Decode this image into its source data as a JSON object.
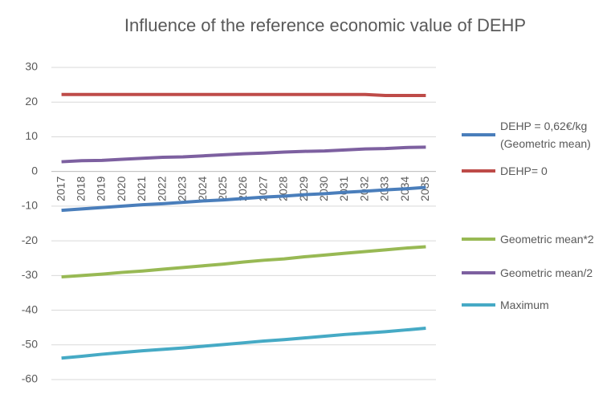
{
  "chart_data": {
    "type": "line",
    "title": "Influence of the reference economic value of DEHP",
    "categories": [
      "2017",
      "2018",
      "2019",
      "2020",
      "2021",
      "2022",
      "2023",
      "2024",
      "2025",
      "2026",
      "2027",
      "2028",
      "2029",
      "2030",
      "2031",
      "2032",
      "2033",
      "2034",
      "2035"
    ],
    "series": [
      {
        "name": "DEHP = 0,62€/kg (Geometric mean)",
        "color": "#4a7ebb",
        "values": [
          -11.2,
          -10.8,
          -10.4,
          -10.0,
          -9.6,
          -9.3,
          -8.9,
          -8.5,
          -8.2,
          -7.8,
          -7.4,
          -7.1,
          -6.7,
          -6.4,
          -6.0,
          -5.7,
          -5.3,
          -5.0,
          -4.6
        ]
      },
      {
        "name": "DEHP= 0",
        "color": "#be4b48",
        "values": [
          22.2,
          22.2,
          22.2,
          22.2,
          22.2,
          22.2,
          22.2,
          22.2,
          22.2,
          22.2,
          22.2,
          22.2,
          22.2,
          22.2,
          22.2,
          22.2,
          21.9,
          21.9,
          21.9
        ]
      },
      {
        "name": "Geometric mean*2",
        "color": "#98b954",
        "values": [
          -30.4,
          -30.0,
          -29.6,
          -29.1,
          -28.7,
          -28.2,
          -27.7,
          -27.2,
          -26.7,
          -26.1,
          -25.6,
          -25.2,
          -24.6,
          -24.1,
          -23.6,
          -23.1,
          -22.6,
          -22.1,
          -21.7
        ]
      },
      {
        "name": "Geometric mean/2",
        "color": "#7d60a0",
        "values": [
          2.8,
          3.1,
          3.2,
          3.5,
          3.8,
          4.1,
          4.2,
          4.5,
          4.8,
          5.1,
          5.3,
          5.6,
          5.8,
          5.9,
          6.2,
          6.5,
          6.6,
          6.9,
          7.0
        ]
      },
      {
        "name": "Maximum",
        "color": "#46aac5",
        "values": [
          -53.8,
          -53.3,
          -52.7,
          -52.2,
          -51.7,
          -51.3,
          -50.9,
          -50.4,
          -49.9,
          -49.4,
          -48.9,
          -48.5,
          -48.0,
          -47.5,
          -47.0,
          -46.6,
          -46.2,
          -45.7,
          -45.2
        ]
      }
    ],
    "ylim": [
      -60,
      30
    ],
    "yticks": [
      -60,
      -50,
      -40,
      -30,
      -20,
      -10,
      0,
      10,
      20,
      30
    ],
    "grid": true,
    "legend": "right"
  }
}
